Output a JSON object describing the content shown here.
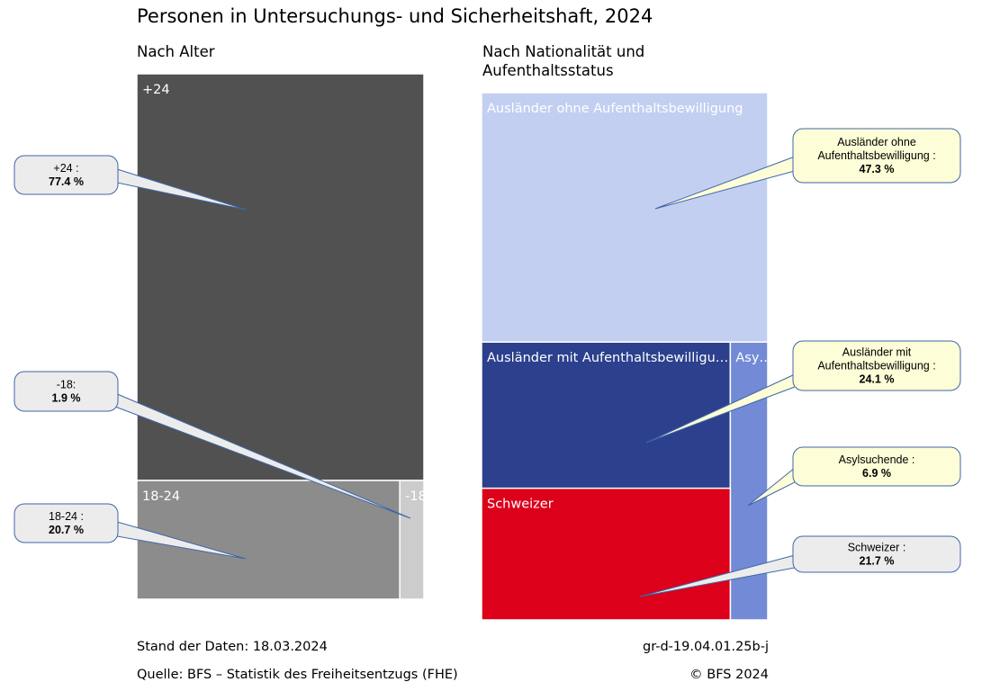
{
  "title": "Personen in Untersuchungs- und Sicherheitshaft, 2024",
  "chart_data": [
    {
      "type": "treemap",
      "subtitle": "Nach Alter",
      "categories": [
        "+24",
        "18-24",
        "-18"
      ],
      "values": [
        77.4,
        20.7,
        1.9
      ],
      "unit": "%",
      "tile_labels": [
        "+24",
        "18-24",
        "-18"
      ],
      "colors": [
        "#515151",
        "#8c8c8c",
        "#cccccc"
      ],
      "callouts": [
        {
          "label": "+24 :",
          "value": "77.4 %"
        },
        {
          "label": "-18:",
          "value": "1.9 %"
        },
        {
          "label": "18-24 :",
          "value": "20.7 %"
        }
      ]
    },
    {
      "type": "treemap",
      "subtitle": "Nach Nationalität und Aufenthaltsstatus",
      "categories": [
        "Ausländer ohne Aufenthaltsbewilligung",
        "Ausländer mit Aufenthaltsbewilligung",
        "Asylsuchende",
        "Schweizer"
      ],
      "values": [
        47.3,
        24.1,
        6.9,
        21.7
      ],
      "unit": "%",
      "tile_labels": [
        "Ausländer ohne Aufenthaltsbewilligung",
        "Ausländer mit Aufenthaltsbewilligu…",
        "Asy…",
        "Schweizer"
      ],
      "colors": [
        "#c2cff1",
        "#2c408d",
        "#738bd6",
        "#dc001b"
      ],
      "callouts": [
        {
          "label": "Ausländer ohne Aufenthaltsbewilligung :",
          "value": "47.3 %"
        },
        {
          "label": "Ausländer mit Aufenthaltsbewilligung :",
          "value": "24.1 %"
        },
        {
          "label": "Asylsuchende :",
          "value": "6.9 %"
        },
        {
          "label": "Schweizer :",
          "value": "21.7 %"
        }
      ]
    }
  ],
  "footer": {
    "stand": "Stand der Daten: 18.03.2024",
    "quelle": "Quelle: BFS – Statistik des Freiheitsentzugs (FHE)",
    "code": "gr-d-19.04.01.25b-j",
    "copyright": "© BFS 2024"
  }
}
